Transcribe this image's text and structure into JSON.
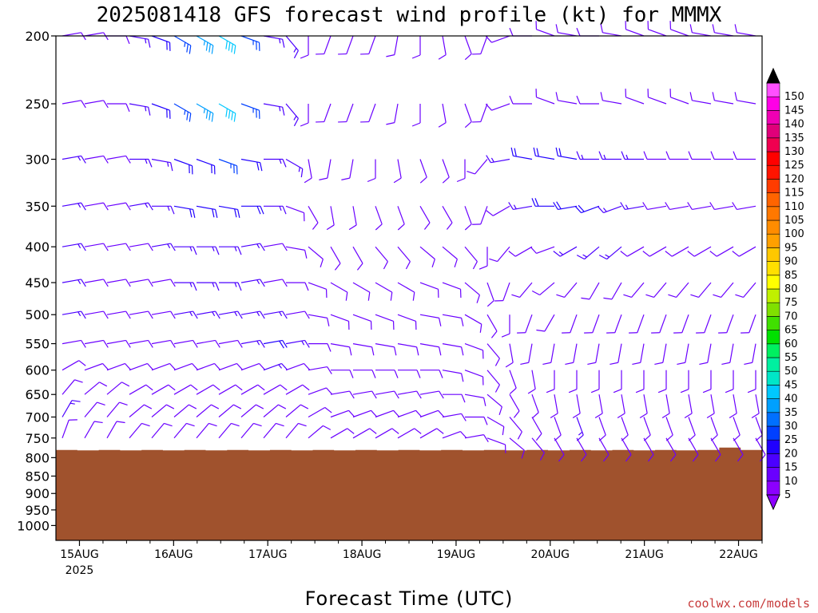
{
  "chart_data": {
    "type": "wind-barb profile",
    "title": "2025081418 GFS forecast wind profile (kt) for MMMX",
    "xlabel": "Forecast Time (UTC)",
    "ylabel": "",
    "credit": "coolwx.com/models",
    "y_scale": "log",
    "y_reversed": true,
    "ylim": [
      200,
      1050
    ],
    "y_ticks": [
      "200",
      "250",
      "300",
      "350",
      "400",
      "450",
      "500",
      "550",
      "600",
      "650",
      "700",
      "750",
      "800",
      "850",
      "900",
      "950",
      "1000"
    ],
    "x_ticks": [
      "15AUG",
      "16AUG",
      "17AUG",
      "18AUG",
      "19AUG",
      "20AUG",
      "21AUG",
      "22AUG"
    ],
    "x_tick_sublabel": "2025",
    "xlim_days": [
      14.75,
      22.25
    ],
    "terrain_color": "#a0522d",
    "surface_pressure": [
      780,
      781,
      780,
      781,
      780,
      781,
      780,
      781,
      780,
      781,
      780,
      781,
      780,
      781,
      780,
      781,
      780,
      781,
      780,
      781,
      780,
      781,
      780,
      781,
      780,
      781,
      780,
      781,
      780,
      781,
      780,
      774,
      780
    ],
    "colorbar": {
      "labels": [
        "5",
        "10",
        "15",
        "20",
        "25",
        "30",
        "35",
        "40",
        "45",
        "50",
        "55",
        "60",
        "65",
        "70",
        "75",
        "80",
        "85",
        "90",
        "95",
        "100",
        "105",
        "110",
        "115",
        "120",
        "125",
        "130",
        "135",
        "140",
        "145",
        "150"
      ],
      "colors": [
        "#8c00ff",
        "#6a00ff",
        "#4b00ff",
        "#2000ff",
        "#0040ff",
        "#0070ff",
        "#00a0ff",
        "#00c8ff",
        "#00e6c8",
        "#00f0a0",
        "#00f060",
        "#00e000",
        "#40e000",
        "#80e000",
        "#c0f000",
        "#ffff00",
        "#ffe000",
        "#ffc800",
        "#ffa000",
        "#ff8c00",
        "#ff7800",
        "#ff6400",
        "#ff3c00",
        "#ff1400",
        "#ff0000",
        "#f00050",
        "#e0007a",
        "#f000b4",
        "#ff00e6",
        "#ff50ff"
      ],
      "top_arrow_color": "#000000",
      "bottom_arrow_color": "#8c00ff"
    },
    "levels": [
      1000,
      975,
      950,
      925,
      900,
      875,
      850,
      825,
      800,
      775,
      750,
      725,
      700,
      675,
      650,
      625,
      600,
      575,
      550,
      525,
      500,
      475,
      450,
      425,
      400,
      375,
      350,
      325,
      300,
      275,
      250,
      225,
      200
    ],
    "barb_levels": [
      750,
      700,
      650,
      600,
      550,
      500,
      450,
      400,
      350,
      300,
      250,
      200
    ],
    "barb_speed_kt": {
      "200": [
        10,
        10,
        10,
        15,
        20,
        25,
        35,
        40,
        25,
        15,
        15,
        10,
        10,
        10,
        10,
        10,
        10,
        10,
        10,
        10,
        10,
        10,
        10,
        10,
        10,
        10,
        10,
        10,
        10,
        10,
        10,
        10
      ],
      "250": [
        10,
        10,
        10,
        15,
        20,
        25,
        35,
        40,
        25,
        15,
        15,
        10,
        10,
        10,
        10,
        10,
        10,
        10,
        10,
        10,
        10,
        10,
        10,
        10,
        10,
        10,
        10,
        10,
        10,
        10,
        10,
        10
      ],
      "300": [
        15,
        10,
        10,
        15,
        15,
        20,
        20,
        25,
        20,
        15,
        15,
        10,
        10,
        10,
        10,
        10,
        10,
        10,
        10,
        10,
        15,
        20,
        20,
        20,
        15,
        15,
        15,
        10,
        10,
        10,
        10,
        10
      ],
      "350": [
        15,
        10,
        10,
        15,
        15,
        20,
        20,
        20,
        20,
        15,
        10,
        10,
        10,
        10,
        10,
        10,
        10,
        10,
        10,
        10,
        10,
        15,
        20,
        20,
        20,
        15,
        15,
        10,
        10,
        10,
        10,
        10
      ],
      "400": [
        15,
        10,
        10,
        10,
        15,
        15,
        15,
        15,
        15,
        10,
        10,
        10,
        10,
        10,
        10,
        10,
        10,
        10,
        10,
        10,
        10,
        10,
        10,
        15,
        15,
        15,
        10,
        10,
        10,
        10,
        10,
        10
      ],
      "450": [
        15,
        10,
        10,
        10,
        10,
        15,
        15,
        15,
        15,
        10,
        10,
        10,
        10,
        10,
        10,
        10,
        10,
        10,
        10,
        10,
        10,
        10,
        10,
        10,
        10,
        10,
        10,
        10,
        10,
        10,
        10,
        10
      ],
      "500": [
        15,
        10,
        10,
        10,
        10,
        15,
        15,
        15,
        15,
        15,
        10,
        10,
        10,
        10,
        10,
        10,
        10,
        10,
        10,
        10,
        10,
        10,
        10,
        10,
        10,
        10,
        10,
        10,
        10,
        10,
        10,
        10
      ],
      "550": [
        10,
        10,
        10,
        10,
        10,
        10,
        10,
        10,
        15,
        20,
        15,
        10,
        10,
        10,
        10,
        10,
        10,
        10,
        10,
        10,
        10,
        10,
        10,
        10,
        10,
        10,
        10,
        10,
        10,
        10,
        10,
        10
      ],
      "600": [
        10,
        10,
        10,
        10,
        10,
        10,
        10,
        10,
        10,
        15,
        10,
        10,
        10,
        10,
        10,
        10,
        10,
        10,
        10,
        10,
        10,
        10,
        10,
        10,
        10,
        10,
        10,
        10,
        10,
        10,
        10,
        10
      ],
      "650": [
        10,
        10,
        10,
        10,
        10,
        10,
        10,
        10,
        10,
        10,
        10,
        10,
        10,
        10,
        10,
        10,
        10,
        10,
        10,
        10,
        10,
        10,
        10,
        10,
        10,
        10,
        10,
        10,
        10,
        10,
        10,
        10
      ],
      "700": [
        15,
        10,
        10,
        10,
        10,
        10,
        10,
        10,
        10,
        10,
        10,
        10,
        10,
        10,
        10,
        10,
        10,
        10,
        10,
        10,
        10,
        10,
        10,
        15,
        10,
        10,
        10,
        10,
        10,
        10,
        10,
        10
      ],
      "750": [
        10,
        10,
        10,
        10,
        10,
        10,
        10,
        10,
        10,
        10,
        10,
        10,
        10,
        10,
        10,
        10,
        10,
        10,
        10,
        10,
        10,
        10,
        10,
        10,
        10,
        10,
        10,
        10,
        10,
        10,
        10,
        10
      ]
    },
    "barb_dir_deg": {
      "200": [
        80,
        80,
        90,
        100,
        110,
        120,
        120,
        120,
        110,
        100,
        140,
        180,
        200,
        200,
        200,
        190,
        180,
        170,
        160,
        200,
        250,
        270,
        290,
        280,
        270,
        280,
        290,
        290,
        290,
        280,
        280,
        280
      ],
      "250": [
        80,
        80,
        90,
        100,
        110,
        120,
        120,
        120,
        110,
        100,
        140,
        180,
        200,
        200,
        200,
        190,
        180,
        170,
        160,
        200,
        250,
        270,
        290,
        280,
        270,
        280,
        290,
        290,
        290,
        280,
        280,
        280
      ],
      "300": [
        80,
        80,
        80,
        90,
        100,
        110,
        110,
        110,
        100,
        90,
        120,
        170,
        190,
        190,
        180,
        170,
        160,
        160,
        180,
        220,
        260,
        280,
        280,
        280,
        270,
        270,
        270,
        270,
        270,
        270,
        270,
        270
      ],
      "350": [
        80,
        80,
        80,
        80,
        90,
        100,
        100,
        100,
        90,
        90,
        110,
        150,
        170,
        170,
        160,
        160,
        150,
        150,
        160,
        200,
        240,
        260,
        270,
        260,
        250,
        250,
        260,
        260,
        260,
        260,
        260,
        260
      ],
      "400": [
        80,
        80,
        80,
        80,
        80,
        90,
        90,
        90,
        80,
        80,
        100,
        130,
        150,
        150,
        140,
        140,
        130,
        130,
        140,
        180,
        220,
        240,
        250,
        240,
        230,
        230,
        240,
        240,
        240,
        240,
        240,
        240
      ],
      "450": [
        80,
        80,
        80,
        80,
        80,
        90,
        90,
        90,
        80,
        80,
        90,
        110,
        120,
        120,
        120,
        120,
        110,
        110,
        130,
        160,
        200,
        220,
        230,
        220,
        210,
        210,
        220,
        220,
        220,
        220,
        220,
        220
      ],
      "500": [
        80,
        80,
        80,
        80,
        80,
        80,
        80,
        80,
        80,
        80,
        80,
        100,
        110,
        110,
        110,
        110,
        100,
        100,
        120,
        150,
        180,
        200,
        210,
        200,
        200,
        200,
        200,
        200,
        200,
        200,
        200,
        200
      ],
      "550": [
        80,
        80,
        80,
        80,
        80,
        80,
        80,
        80,
        80,
        80,
        80,
        90,
        100,
        100,
        100,
        100,
        100,
        100,
        110,
        140,
        170,
        190,
        190,
        190,
        190,
        190,
        190,
        190,
        190,
        190,
        190,
        190
      ],
      "600": [
        60,
        70,
        70,
        70,
        70,
        70,
        70,
        70,
        70,
        70,
        70,
        80,
        90,
        90,
        90,
        90,
        90,
        100,
        110,
        140,
        160,
        170,
        180,
        180,
        180,
        180,
        180,
        180,
        180,
        180,
        180,
        180
      ],
      "650": [
        40,
        50,
        50,
        60,
        60,
        60,
        60,
        60,
        60,
        60,
        60,
        70,
        80,
        80,
        80,
        80,
        80,
        90,
        100,
        130,
        150,
        160,
        170,
        170,
        170,
        170,
        170,
        170,
        170,
        170,
        170,
        170
      ],
      "700": [
        30,
        40,
        40,
        50,
        50,
        50,
        50,
        50,
        50,
        50,
        50,
        60,
        70,
        70,
        70,
        70,
        70,
        80,
        90,
        120,
        140,
        150,
        160,
        160,
        160,
        160,
        160,
        160,
        160,
        160,
        160,
        160
      ],
      "750": [
        20,
        30,
        30,
        40,
        40,
        40,
        40,
        40,
        40,
        40,
        40,
        50,
        60,
        60,
        60,
        60,
        60,
        70,
        80,
        110,
        130,
        140,
        150,
        150,
        150,
        150,
        150,
        150,
        150,
        150,
        150,
        150
      ]
    }
  }
}
